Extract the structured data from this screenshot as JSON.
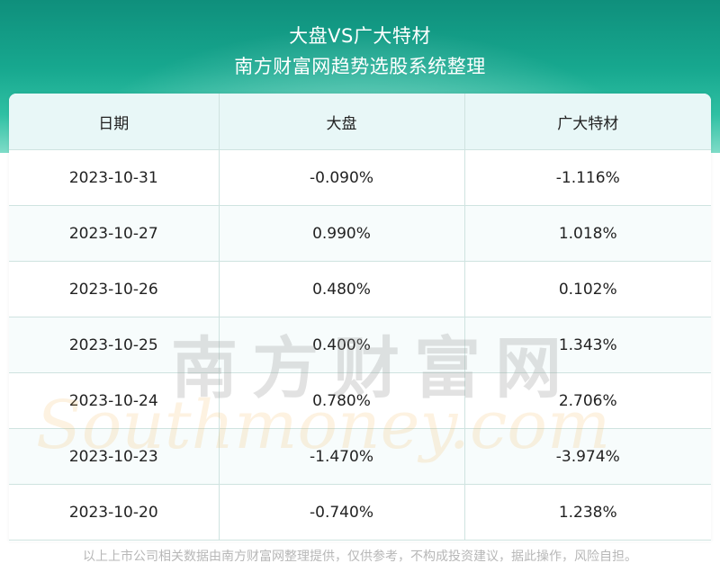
{
  "header": {
    "title": "大盘VS广大特材",
    "subtitle": "南方财富网趋势选股系统整理"
  },
  "chart_data": {
    "type": "table",
    "columns": [
      "日期",
      "大盘",
      "广大特材"
    ],
    "rows": [
      [
        "2023-10-31",
        "-0.090%",
        "-1.116%"
      ],
      [
        "2023-10-27",
        "0.990%",
        "1.018%"
      ],
      [
        "2023-10-26",
        "0.480%",
        "0.102%"
      ],
      [
        "2023-10-25",
        "0.400%",
        "1.343%"
      ],
      [
        "2023-10-24",
        "0.780%",
        "2.706%"
      ],
      [
        "2023-10-23",
        "-1.470%",
        "-3.974%"
      ],
      [
        "2023-10-20",
        "-0.740%",
        "1.238%"
      ]
    ]
  },
  "watermark": {
    "cn": "南方财富网",
    "en": "Southmoney.com"
  },
  "footer": {
    "disclaimer": "以上上市公司相关数据由南方财富网整理提供，仅供参考，不构成投资建议，据此操作，风险自担。"
  },
  "colors": {
    "header_top": "#0f8f7c",
    "header_bottom": "#7fdcc8",
    "table_header_bg": "#e8f7f7",
    "grid_line": "#cfe3e0"
  }
}
